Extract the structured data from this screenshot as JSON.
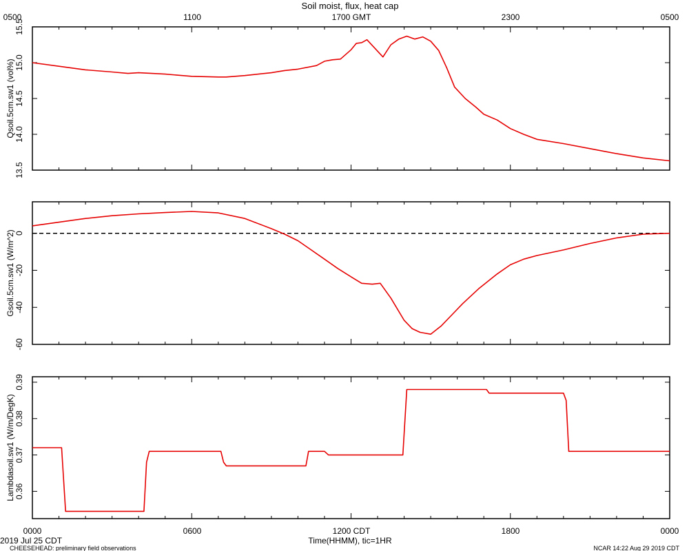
{
  "title": "Soil moist, flux, heat cap",
  "top_axis": {
    "labels": [
      "0500",
      "1100",
      "1700 GMT",
      "2300",
      "0500"
    ]
  },
  "bottom_axis": {
    "labels": [
      "0000",
      "0600",
      "1200 CDT",
      "1800",
      "0000"
    ],
    "xlabel": "Time(HHMM), tic=1HR"
  },
  "footer": {
    "date": "2019 Jul 25 CDT",
    "project": "CHEESEHEAD: preliminary field observations",
    "stamp": "NCAR 14:22 Aug 29 2019 CDT"
  },
  "colors": {
    "series": "#e60000",
    "axis": "#000000"
  },
  "chart_data": [
    {
      "type": "line",
      "ylabel": "Qsoil.5cm.sw1 (vol%)",
      "ylim": [
        13.5,
        15.5
      ],
      "yticks": [
        13.5,
        14.0,
        14.5,
        15.0,
        15.5
      ],
      "ytick_labels": [
        "13.5",
        "14.0",
        "14.5",
        "15.0",
        "15.5"
      ],
      "x_hours": [
        0,
        1,
        2,
        3,
        3.6,
        4,
        5,
        6,
        7,
        7.3,
        8,
        9,
        9.5,
        10,
        10.7,
        11,
        11.3,
        11.6,
        12,
        12.2,
        12.4,
        12.6,
        12.9,
        13.2,
        13.5,
        13.8,
        14.1,
        14.4,
        14.7,
        15,
        15.3,
        15.6,
        15.9,
        16.3,
        16.7,
        17,
        17.5,
        18,
        18.5,
        19,
        20,
        21,
        22,
        23,
        24
      ],
      "values": [
        15.0,
        14.95,
        14.9,
        14.87,
        14.85,
        14.86,
        14.84,
        14.81,
        14.8,
        14.8,
        14.82,
        14.86,
        14.89,
        14.91,
        14.96,
        15.02,
        15.04,
        15.05,
        15.18,
        15.27,
        15.28,
        15.32,
        15.2,
        15.08,
        15.25,
        15.33,
        15.37,
        15.33,
        15.36,
        15.3,
        15.17,
        14.93,
        14.66,
        14.5,
        14.38,
        14.28,
        14.2,
        14.08,
        14.0,
        13.93,
        13.87,
        13.8,
        13.73,
        13.67,
        13.63
      ]
    },
    {
      "type": "line",
      "ylabel": "Gsoil.5cm.sw1 (W/m^2)",
      "ylim": [
        -60,
        17
      ],
      "yticks": [
        -60,
        -40,
        -20,
        0
      ],
      "ytick_labels": [
        "-60",
        "-40",
        "-20",
        "0"
      ],
      "reference_line": 0,
      "x_hours": [
        0,
        1,
        2,
        3,
        4,
        5,
        6,
        7,
        8,
        9,
        9.5,
        10,
        10.5,
        11,
        11.5,
        12,
        12.4,
        12.8,
        13.1,
        13.5,
        14,
        14.3,
        14.6,
        15,
        15.4,
        15.8,
        16.2,
        16.8,
        17.5,
        18,
        18.5,
        19,
        20,
        21,
        22,
        23,
        24
      ],
      "values": [
        4,
        6,
        8,
        9.5,
        10.5,
        11.2,
        11.8,
        11,
        8,
        2.5,
        -0.5,
        -4,
        -9,
        -14,
        -19,
        -23.5,
        -27,
        -27.5,
        -27,
        -35,
        -47,
        -51.5,
        -53.5,
        -54.5,
        -50,
        -44,
        -38,
        -30,
        -22,
        -17,
        -14,
        -12,
        -9,
        -5.5,
        -2.5,
        -0.5,
        0
      ]
    },
    {
      "type": "line",
      "ylabel": "Lambdasoil.sw1 (W/m/DegK)",
      "ylim": [
        0.3525,
        0.3915
      ],
      "yticks": [
        0.36,
        0.37,
        0.38,
        0.39
      ],
      "ytick_labels": [
        "0.36",
        "0.37",
        "0.38",
        "0.39"
      ],
      "x_hours": [
        0,
        1.1,
        1.25,
        4.2,
        4.3,
        4.4,
        7.1,
        7.2,
        7.3,
        10.3,
        10.4,
        11.0,
        11.15,
        13.95,
        14.1,
        17.1,
        17.2,
        20.0,
        20.1,
        20.2,
        24
      ],
      "values": [
        0.372,
        0.372,
        0.3545,
        0.3545,
        0.368,
        0.371,
        0.371,
        0.368,
        0.367,
        0.367,
        0.371,
        0.371,
        0.37,
        0.37,
        0.388,
        0.388,
        0.387,
        0.387,
        0.385,
        0.371,
        0.371
      ]
    }
  ]
}
